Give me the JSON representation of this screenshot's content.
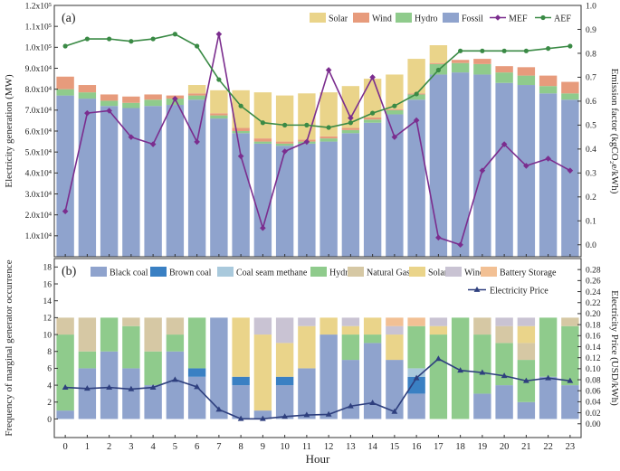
{
  "colors": {
    "fossil": "#8fa3cd",
    "hydro": "#8fcb8c",
    "wind": "#e79b7c",
    "solar": "#ead48a",
    "mef": "#7b2d8e",
    "aef": "#3a8a45",
    "black_coal": "#8fa3cd",
    "brown_coal": "#3a80c3",
    "coal_seam_methane": "#a9c9dc",
    "natural_gas": "#d6c8a4",
    "wind_b": "#c9c3d3",
    "battery_storage": "#f2c094",
    "price": "#2e3f7e"
  },
  "chart_data": [
    {
      "type": "bar",
      "panel_label": "(a)",
      "x": [
        0,
        1,
        2,
        3,
        4,
        5,
        6,
        7,
        8,
        9,
        10,
        11,
        12,
        13,
        14,
        15,
        16,
        17,
        18,
        19,
        20,
        21,
        22,
        23
      ],
      "x_ticks": [
        "0",
        "1",
        "2",
        "3",
        "4",
        "5",
        "6",
        "7",
        "8",
        "9",
        "10",
        "11",
        "12",
        "13",
        "14",
        "15",
        "16",
        "17",
        "18",
        "19",
        "20",
        "21",
        "22",
        "23"
      ],
      "xlabel": "Hour",
      "ylabel": "Electricity generation (MW)",
      "ylim": [
        0,
        120000
      ],
      "y_ticks": [
        "1.0x10⁴",
        "2.0x10⁴",
        "3.0x10⁴",
        "4.0x10⁴",
        "5.0x10⁴",
        "6.0x10⁴",
        "7.0x10⁴",
        "8.0x10⁴",
        "9.0x10⁴",
        "1.0x10⁵",
        "1.1x10⁵",
        "1.2x10⁵"
      ],
      "y_tick_values": [
        10000,
        20000,
        30000,
        40000,
        50000,
        60000,
        70000,
        80000,
        90000,
        100000,
        110000,
        120000
      ],
      "y2label": "Emission factor (kgCO₂e/kWh)",
      "y2lim": [
        -0.05,
        1.0
      ],
      "y2_ticks": [
        "0.0",
        "0.1",
        "0.2",
        "0.3",
        "0.4",
        "0.5",
        "0.6",
        "0.7",
        "0.8",
        "0.9",
        "1.0"
      ],
      "y2_tick_values": [
        0,
        0.1,
        0.2,
        0.3,
        0.4,
        0.5,
        0.6,
        0.7,
        0.8,
        0.9,
        1.0
      ],
      "stacked_series": [
        {
          "name": "Fossil",
          "color_key": "fossil",
          "values": [
            77000,
            75500,
            72000,
            71000,
            72000,
            72500,
            75000,
            66000,
            59000,
            54000,
            53000,
            54000,
            55000,
            59000,
            64000,
            68000,
            75000,
            87000,
            88000,
            87000,
            83000,
            82000,
            78000,
            75000
          ]
        },
        {
          "name": "Hydro",
          "color_key": "hydro",
          "values": [
            3000,
            3000,
            2500,
            2500,
            3000,
            3000,
            2000,
            1500,
            1000,
            1000,
            1000,
            1000,
            1500,
            1500,
            1500,
            2000,
            2500,
            5000,
            4500,
            5000,
            5000,
            4500,
            3500,
            3000
          ]
        },
        {
          "name": "Wind",
          "color_key": "wind",
          "values": [
            6000,
            3500,
            3000,
            3000,
            2500,
            1500,
            1000,
            1000,
            1500,
            1500,
            1000,
            1000,
            1000,
            1000,
            1000,
            500,
            500,
            500,
            1500,
            2500,
            3000,
            4000,
            5000,
            5500
          ]
        },
        {
          "name": "Solar",
          "color_key": "solar",
          "values": [
            0,
            0,
            0,
            0,
            0,
            0,
            4000,
            11000,
            18000,
            22000,
            22000,
            22000,
            21000,
            20000,
            18500,
            16500,
            16500,
            8500,
            0,
            0,
            0,
            0,
            0,
            0
          ]
        }
      ],
      "line_series": [
        {
          "name": "MEF",
          "color_key": "mef",
          "marker": "diamond",
          "values": [
            0.14,
            0.55,
            0.56,
            0.45,
            0.42,
            0.61,
            0.43,
            0.88,
            0.37,
            0.07,
            0.39,
            0.43,
            0.73,
            0.53,
            0.7,
            0.45,
            0.52,
            0.03,
            0.0,
            0.31,
            0.42,
            0.33,
            0.36,
            0.31
          ]
        },
        {
          "name": "AEF",
          "color_key": "aef",
          "marker": "circle",
          "values": [
            0.83,
            0.86,
            0.86,
            0.85,
            0.86,
            0.88,
            0.83,
            0.69,
            0.58,
            0.51,
            0.5,
            0.5,
            0.49,
            0.51,
            0.55,
            0.58,
            0.63,
            0.73,
            0.81,
            0.81,
            0.81,
            0.81,
            0.82,
            0.83
          ]
        }
      ],
      "legend": [
        "Solar",
        "Wind",
        "Hydro",
        "Fossil",
        "MEF",
        "AEF"
      ],
      "legend_position": "top-right"
    },
    {
      "type": "bar",
      "panel_label": "(b)",
      "x": [
        0,
        1,
        2,
        3,
        4,
        5,
        6,
        7,
        8,
        9,
        10,
        11,
        12,
        13,
        14,
        15,
        16,
        17,
        18,
        19,
        20,
        21,
        22,
        23
      ],
      "x_ticks": [
        "0",
        "1",
        "2",
        "3",
        "4",
        "5",
        "6",
        "7",
        "8",
        "9",
        "10",
        "11",
        "12",
        "13",
        "14",
        "15",
        "16",
        "17",
        "18",
        "19",
        "20",
        "21",
        "22",
        "23"
      ],
      "xlabel": "Hour",
      "ylabel": "Frequency of marginal generator occurrence",
      "ylim": [
        -2.2,
        19
      ],
      "y_ticks": [
        "0",
        "2",
        "4",
        "6",
        "8",
        "10",
        "12",
        "14",
        "16",
        "18"
      ],
      "y_tick_values": [
        0,
        2,
        4,
        6,
        8,
        10,
        12,
        14,
        16,
        18
      ],
      "y2label": "Electricity Price (USD/kWh)",
      "y2lim": [
        -0.025,
        0.3
      ],
      "y2_ticks": [
        "0.00",
        "0.02",
        "0.04",
        "0.06",
        "0.08",
        "0.10",
        "0.12",
        "0.14",
        "0.16",
        "0.18",
        "0.20",
        "0.22",
        "0.24",
        "0.26",
        "0.28"
      ],
      "y2_tick_values": [
        0,
        0.02,
        0.04,
        0.06,
        0.08,
        0.1,
        0.12,
        0.14,
        0.16,
        0.18,
        0.2,
        0.22,
        0.24,
        0.26,
        0.28
      ],
      "stacked_series": [
        {
          "name": "Black coal",
          "color_key": "black_coal",
          "values": [
            1,
            6,
            8,
            6,
            4,
            8,
            5,
            12,
            4,
            1,
            4,
            6,
            10,
            7,
            9,
            7,
            3,
            0,
            0,
            3,
            4,
            2,
            5,
            4
          ]
        },
        {
          "name": "Brown coal",
          "color_key": "brown_coal",
          "values": [
            0,
            0,
            0,
            0,
            0,
            0,
            1,
            0,
            1,
            0,
            1,
            0,
            0,
            0,
            0,
            0,
            2,
            0,
            0,
            0,
            0,
            0,
            0,
            0
          ]
        },
        {
          "name": "Coal seam methane",
          "color_key": "coal_seam_methane",
          "values": [
            0,
            0,
            0,
            0,
            0,
            0,
            0,
            0,
            0,
            0,
            0,
            0,
            0,
            0,
            0,
            0,
            1,
            0,
            0,
            0,
            0,
            0,
            0,
            0
          ]
        },
        {
          "name": "Hydro",
          "color_key": "hydro",
          "values": [
            9,
            2,
            4,
            5,
            4,
            2,
            6,
            0,
            0,
            0,
            0,
            0,
            0,
            3,
            1,
            0,
            5,
            10,
            12,
            7,
            5,
            5,
            7,
            7
          ]
        },
        {
          "name": "Natural Gas",
          "color_key": "natural_gas",
          "values": [
            2,
            4,
            0,
            1,
            4,
            2,
            0,
            0,
            0,
            0,
            0,
            0,
            0,
            0,
            0,
            0,
            0,
            0,
            0,
            2,
            2,
            2,
            0,
            1
          ]
        },
        {
          "name": "Solar",
          "color_key": "solar",
          "values": [
            0,
            0,
            0,
            0,
            0,
            0,
            0,
            0,
            7,
            9,
            4,
            5,
            2,
            1,
            2,
            3,
            0,
            1,
            0,
            0,
            0,
            2,
            0,
            0
          ]
        },
        {
          "name": "Wind",
          "color_key": "wind_b",
          "values": [
            0,
            0,
            0,
            0,
            0,
            0,
            0,
            0,
            0,
            2,
            3,
            1,
            0,
            1,
            0,
            1,
            0,
            1,
            0,
            0,
            1,
            1,
            0,
            0
          ]
        },
        {
          "name": "Battery Storage",
          "color_key": "battery_storage",
          "values": [
            0,
            0,
            0,
            0,
            0,
            0,
            0,
            0,
            0,
            0,
            0,
            0,
            0,
            0,
            0,
            1,
            1,
            0,
            0,
            0,
            0,
            0,
            0,
            0
          ]
        }
      ],
      "line_series": [
        {
          "name": "Electricity Price",
          "color_key": "price",
          "marker": "triangle",
          "values": [
            0.066,
            0.064,
            0.066,
            0.063,
            0.066,
            0.08,
            0.067,
            0.026,
            0.009,
            0.009,
            0.013,
            0.016,
            0.017,
            0.032,
            0.038,
            0.022,
            0.083,
            0.118,
            0.097,
            0.093,
            0.087,
            0.078,
            0.083,
            0.078
          ]
        }
      ],
      "legend": [
        "Black coal",
        "Brown coal",
        "Coal seam methane",
        "Hydro",
        "Natural Gas",
        "Solar",
        "Wind",
        "Battery Storage",
        "Electricity Price"
      ],
      "legend_position": "top"
    }
  ]
}
